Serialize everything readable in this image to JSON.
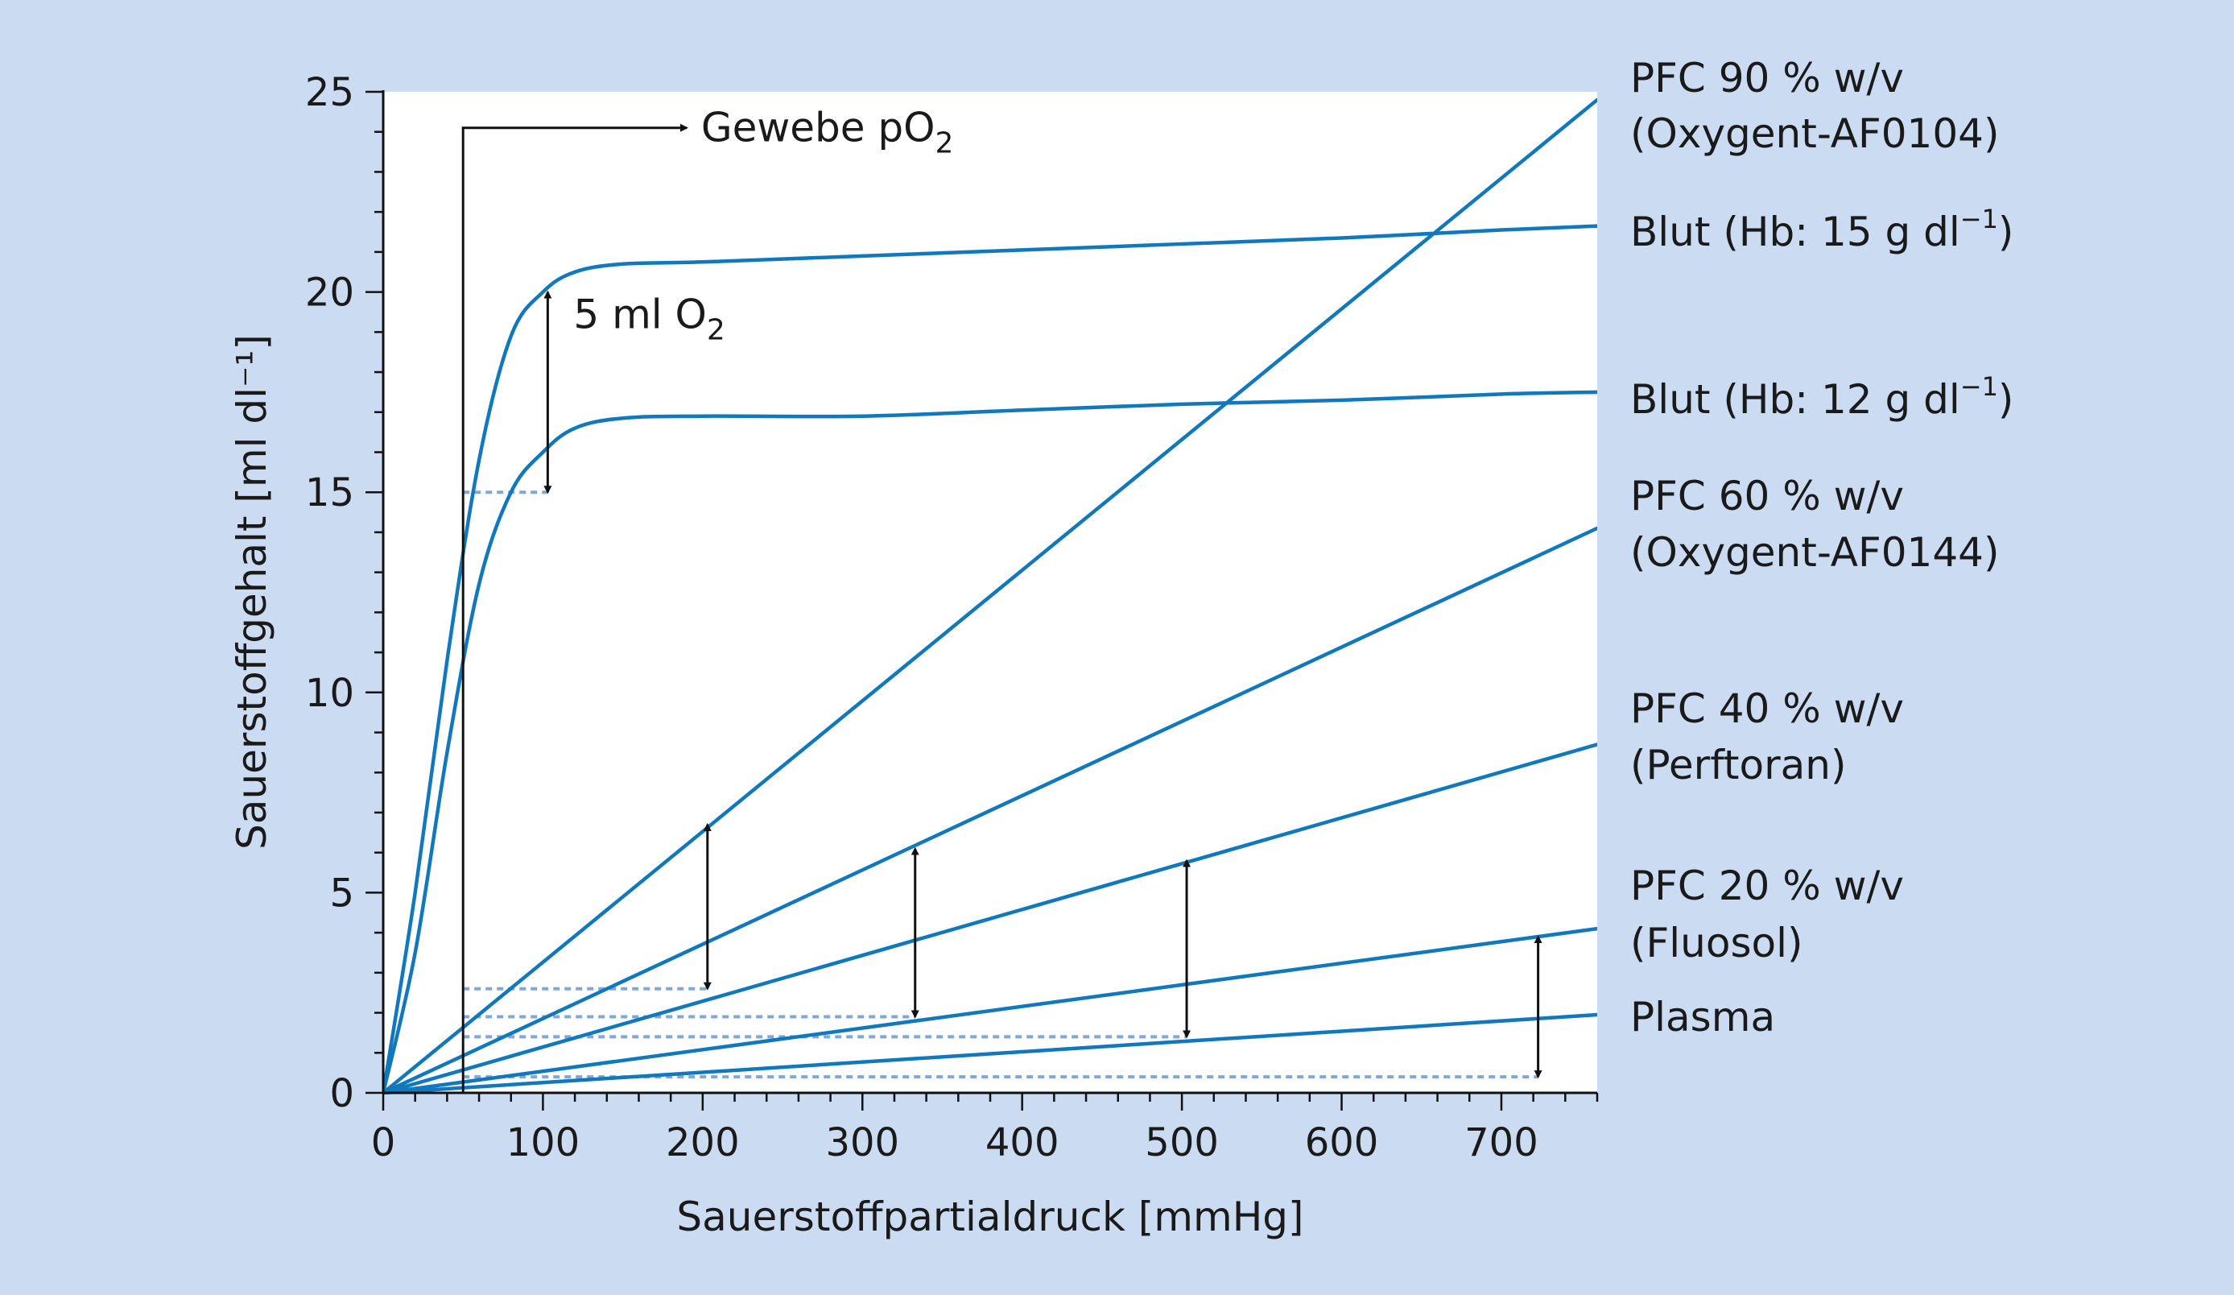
{
  "chart_data": {
    "type": "line",
    "xlabel": "Sauerstoffpartialdruck [mmHg]",
    "ylabel": "Sauerstoffgehalt [ml dl⁻¹]",
    "xlim": [
      0,
      760
    ],
    "ylim": [
      0,
      25
    ],
    "x_ticks": [
      0,
      100,
      200,
      300,
      400,
      500,
      600,
      700
    ],
    "y_ticks": [
      0,
      5,
      10,
      15,
      20,
      25
    ],
    "grid": false,
    "line_color": "#1178bd",
    "guide_color": "#7fa8d8",
    "series": [
      {
        "label_lines": [
          "PFC 90 % w/v",
          "(Oxygent-AF0104)"
        ],
        "x": [
          0,
          760
        ],
        "y": [
          0,
          24.8
        ]
      },
      {
        "label_lines": [
          "Blut (Hb: 15 g dl",
          "−1",
          ")"
        ],
        "x": [
          0,
          20,
          40,
          60,
          80,
          100,
          120,
          150,
          200,
          300,
          400,
          500,
          600,
          700,
          760
        ],
        "y": [
          0,
          5,
          10.8,
          15.8,
          18.9,
          20.0,
          20.5,
          20.7,
          20.75,
          20.9,
          21.05,
          21.2,
          21.35,
          21.55,
          21.65
        ]
      },
      {
        "label_lines": [
          "Blut (Hb: 12 g dl",
          "−1",
          ")"
        ],
        "x": [
          0,
          20,
          40,
          60,
          80,
          100,
          120,
          150,
          200,
          300,
          400,
          500,
          600,
          700,
          760
        ],
        "y": [
          0,
          3.5,
          8.5,
          12.7,
          15.0,
          16.0,
          16.6,
          16.85,
          16.9,
          16.9,
          17.05,
          17.2,
          17.3,
          17.45,
          17.5
        ]
      },
      {
        "label_lines": [
          "PFC 60 % w/v",
          "(Oxygent-AF0144)"
        ],
        "x": [
          0,
          760
        ],
        "y": [
          0,
          14.1
        ]
      },
      {
        "label_lines": [
          "PFC 40 % w/v",
          "(Perftoran)"
        ],
        "x": [
          0,
          760
        ],
        "y": [
          0,
          8.7
        ]
      },
      {
        "label_lines": [
          "PFC 20 % w/v",
          "(Fluosol)"
        ],
        "x": [
          0,
          760
        ],
        "y": [
          0,
          4.1
        ]
      },
      {
        "label_lines": [
          "Plasma"
        ],
        "x": [
          0,
          760
        ],
        "y": [
          0,
          1.95
        ]
      }
    ],
    "annotations": {
      "tissue_po2": {
        "text": "Gewebe pO",
        "sub": "2",
        "x": 50
      },
      "blood_diff": {
        "text": "5 ml O",
        "sub": "2",
        "x": 103,
        "y_from": 15,
        "y_to": 20
      },
      "pfc_extraction": [
        {
          "x": 203,
          "y_from": 2.6,
          "y_to": 6.7
        },
        {
          "x": 333,
          "y_from": 1.9,
          "y_to": 6.1
        },
        {
          "x": 503,
          "y_from": 1.4,
          "y_to": 5.8
        },
        {
          "x": 723,
          "y_from": 0.4,
          "y_to": 3.9
        }
      ],
      "guides": [
        {
          "y": 15,
          "x_from": 50,
          "x_to": 103
        },
        {
          "y": 2.6,
          "x_from": 50,
          "x_to": 203
        },
        {
          "y": 1.9,
          "x_from": 50,
          "x_to": 333
        },
        {
          "y": 1.4,
          "x_from": 50,
          "x_to": 503
        },
        {
          "y": 0.4,
          "x_from": 50,
          "x_to": 723
        }
      ]
    }
  }
}
